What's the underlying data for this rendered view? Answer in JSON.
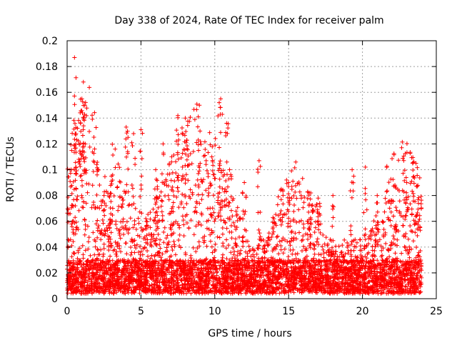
{
  "chart_data": {
    "type": "scatter",
    "title": "Day 338 of 2024, Rate Of TEC Index for receiver palm",
    "xlabel": "GPS time / hours",
    "ylabel": "ROTI / TECUs",
    "xlim": [
      0,
      25
    ],
    "ylim": [
      0,
      0.2
    ],
    "xticks": [
      0,
      5,
      10,
      15,
      20,
      25
    ],
    "yticks": [
      0,
      0.02,
      0.04,
      0.06,
      0.08,
      0.1,
      0.12,
      0.14,
      0.16,
      0.18,
      0.2
    ],
    "grid": true,
    "marker": "+",
    "color": "#ff0000",
    "series": [
      {
        "x_range": [
          0,
          24
        ],
        "points": [
          [
            0.5,
            0.187
          ],
          [
            1.1,
            0.168
          ],
          [
            1.0,
            0.155
          ],
          [
            0.6,
            0.128
          ],
          [
            0.9,
            0.136
          ],
          [
            1.2,
            0.15
          ],
          [
            0.3,
            0.1
          ],
          [
            2.0,
            0.104
          ],
          [
            4.0,
            0.133
          ],
          [
            4.5,
            0.128
          ],
          [
            5.0,
            0.131
          ],
          [
            6.5,
            0.12
          ],
          [
            7.5,
            0.142
          ],
          [
            8.0,
            0.14
          ],
          [
            9.0,
            0.13
          ],
          [
            10.4,
            0.155
          ],
          [
            10.3,
            0.152
          ],
          [
            10.8,
            0.136
          ],
          [
            9.8,
            0.11
          ],
          [
            11.0,
            0.1
          ],
          [
            12.0,
            0.09
          ],
          [
            13.0,
            0.107
          ],
          [
            14.5,
            0.085
          ],
          [
            15.0,
            0.09
          ],
          [
            16.5,
            0.082
          ],
          [
            17.0,
            0.078
          ],
          [
            18.0,
            0.08
          ],
          [
            19.3,
            0.1
          ],
          [
            20.2,
            0.102
          ],
          [
            21.0,
            0.08
          ],
          [
            22.2,
            0.088
          ],
          [
            23.0,
            0.09
          ],
          [
            23.4,
            0.105
          ],
          [
            23.8,
            0.06
          ],
          [
            3.0,
            0.095
          ],
          [
            6.0,
            0.1
          ],
          [
            2.5,
            0.08
          ]
        ],
        "baseline_band": [
          0.005,
          0.03
        ]
      }
    ]
  }
}
